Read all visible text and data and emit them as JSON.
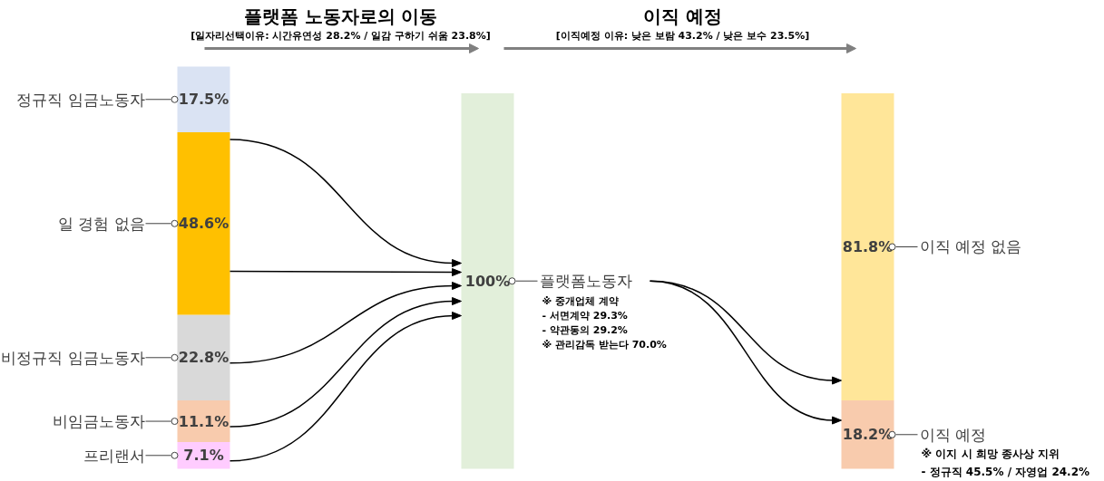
{
  "chart_data": {
    "type": "bar",
    "stacked": true,
    "tick_labels": false,
    "grid": false,
    "categories": [
      null,
      null,
      null
    ],
    "series": [
      {
        "name": "프리랜서",
        "color": "#ffccff",
        "values": [
          7.1,
          null,
          null
        ],
        "value_labels": [
          "7.1%",
          null,
          null
        ]
      },
      {
        "name": "비임금노동자",
        "color": "#f8cbad",
        "values": [
          11.1,
          null,
          null
        ],
        "value_labels": [
          "11.1%",
          null,
          null
        ]
      },
      {
        "name": "비정규직 임금노동자",
        "color": "#d9d9d9",
        "values": [
          22.8,
          null,
          null
        ],
        "value_labels": [
          "22.8%",
          null,
          null
        ]
      },
      {
        "name": "일 경험 없음",
        "color": "#ffc000",
        "values": [
          48.6,
          null,
          null
        ],
        "value_labels": [
          "48.6%",
          null,
          null
        ]
      },
      {
        "name": "정규직 임금노동자",
        "color": "#dae3f3",
        "values": [
          17.5,
          null,
          null
        ],
        "value_labels": [
          "17.5%",
          null,
          null
        ]
      },
      {
        "name": "플랫폼노동자",
        "color": "#e2efda",
        "values": [
          null,
          100,
          null
        ],
        "value_labels": [
          null,
          "100%",
          null
        ]
      },
      {
        "name": "이직 예정",
        "color": "#f8cbad",
        "values": [
          null,
          null,
          18.2
        ],
        "value_labels": [
          null,
          null,
          "18.2%"
        ]
      },
      {
        "name": "이직 예정 없음",
        "color": "#ffe699",
        "values": [
          null,
          null,
          81.8
        ],
        "value_labels": [
          null,
          null,
          "81.8%"
        ]
      }
    ],
    "annotations": [
      "플랫폼 노동자로의 이동",
      "[일자리선택이유: 시간유연성 28.2% / 일감 구하기 쉬움 23.8%]",
      "이직 예정",
      "[이직예정 이유: 낮은 보람 43.2% / 낮은 보수 23.5%]",
      "※ 중개업체 계약",
      "  - 서면계약 29.3%",
      "  - 약관동의 29.2%",
      "※ 관리감독 받는다 70.0%",
      "※ 이지 시 희망 종사상 지위",
      "  - 정규직 45.5% / 자영업 24.2%"
    ]
  }
}
